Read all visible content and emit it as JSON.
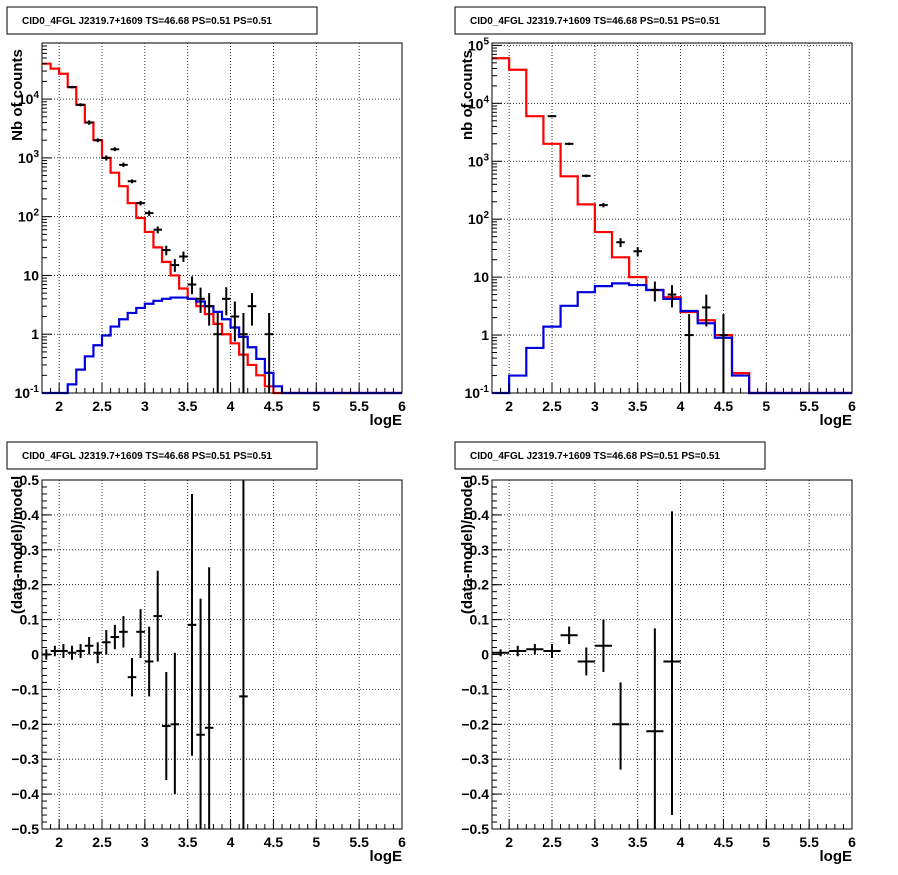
{
  "chart_data": [
    {
      "type": "line",
      "title": "CID0_4FGL J2319.7+1609 TS=46.68 PS=0.51 PS=0.51",
      "xlabel": "logE",
      "ylabel": "Nb of counts",
      "yscale": "log",
      "xlim": [
        1.8,
        6.0
      ],
      "ylim": [
        0.1,
        90000
      ],
      "xticks": [
        "2",
        "2.5",
        "3",
        "3.5",
        "4",
        "4.5",
        "5",
        "5.5",
        "6"
      ],
      "yticks": [
        "10⁻¹",
        "1",
        "10",
        "10²",
        "10³",
        "10⁴"
      ],
      "grid": true,
      "bin_edges": [
        1.8,
        1.9,
        2.0,
        2.1,
        2.2,
        2.3,
        2.4,
        2.5,
        2.6,
        2.7,
        2.8,
        2.9,
        3.0,
        3.1,
        3.2,
        3.3,
        3.4,
        3.5,
        3.6,
        3.7,
        3.8,
        3.9,
        4.0,
        4.1,
        4.2,
        4.3,
        4.4,
        4.5,
        4.6,
        4.7,
        4.8,
        4.9,
        5.0,
        5.1,
        5.2,
        5.3,
        5.4,
        5.5,
        5.6,
        5.7,
        5.8,
        5.9,
        6.0
      ],
      "series": [
        {
          "color": "#ff0000",
          "values": [
            40000,
            33000,
            27000,
            16000,
            8000,
            4000,
            2000,
            1000,
            560,
            330,
            170,
            95,
            55,
            30,
            17,
            10,
            6,
            4,
            3,
            2.2,
            1.5,
            1.0,
            0.7,
            0.45,
            0.3,
            0.2,
            0.13,
            0.1,
            0.1,
            0.1,
            0.1,
            0.1,
            0.1,
            0.1,
            0.1,
            0.1,
            0.1,
            0.1,
            0.1,
            0.1,
            0.1,
            0.1
          ]
        },
        {
          "color": "#0000dd",
          "values": [
            0.1,
            0.1,
            0.1,
            0.14,
            0.25,
            0.42,
            0.65,
            0.95,
            1.35,
            1.8,
            2.3,
            2.8,
            3.3,
            3.7,
            4.0,
            4.2,
            4.2,
            4.0,
            3.6,
            3.0,
            2.4,
            1.8,
            1.3,
            0.9,
            0.6,
            0.38,
            0.22,
            0.13,
            0.1,
            0.1,
            0.1,
            0.1,
            0.1,
            0.1,
            0.1,
            0.1,
            0.1,
            0.1,
            0.1,
            0.1,
            0.1,
            0.1
          ]
        }
      ],
      "points": [
        {
          "x": 2.15,
          "y": 16000,
          "lo": 15200,
          "hi": 16800
        },
        {
          "x": 2.25,
          "y": 8000,
          "lo": 7500,
          "hi": 8500
        },
        {
          "x": 2.35,
          "y": 4000,
          "lo": 3650,
          "hi": 4350
        },
        {
          "x": 2.45,
          "y": 2000,
          "lo": 1850,
          "hi": 2150
        },
        {
          "x": 2.55,
          "y": 1000,
          "lo": 900,
          "hi": 1100
        },
        {
          "x": 2.65,
          "y": 1400,
          "lo": 1300,
          "hi": 1520
        },
        {
          "x": 2.75,
          "y": 760,
          "lo": 700,
          "hi": 830
        },
        {
          "x": 2.85,
          "y": 400,
          "lo": 370,
          "hi": 430
        },
        {
          "x": 2.95,
          "y": 170,
          "lo": 155,
          "hi": 185
        },
        {
          "x": 3.05,
          "y": 115,
          "lo": 103,
          "hi": 127
        },
        {
          "x": 3.15,
          "y": 60,
          "lo": 52,
          "hi": 68
        },
        {
          "x": 3.25,
          "y": 27,
          "lo": 22,
          "hi": 32
        },
        {
          "x": 3.35,
          "y": 15,
          "lo": 11.5,
          "hi": 19
        },
        {
          "x": 3.45,
          "y": 21,
          "lo": 17,
          "hi": 25.5
        },
        {
          "x": 3.55,
          "y": 7,
          "lo": 4.8,
          "hi": 9.6
        },
        {
          "x": 3.65,
          "y": 4,
          "lo": 2.3,
          "hi": 6.2
        },
        {
          "x": 3.75,
          "y": 3,
          "lo": 1.4,
          "hi": 5
        },
        {
          "x": 3.85,
          "y": 1,
          "lo": 0.1,
          "hi": 2.3
        },
        {
          "x": 3.95,
          "y": 4,
          "lo": 2.1,
          "hi": 6.3
        },
        {
          "x": 4.05,
          "y": 2,
          "lo": 0.75,
          "hi": 3.6
        },
        {
          "x": 4.15,
          "y": 1,
          "lo": 0.1,
          "hi": 2.3
        },
        {
          "x": 4.25,
          "y": 3,
          "lo": 1.4,
          "hi": 5
        },
        {
          "x": 4.45,
          "y": 1,
          "lo": 0.1,
          "hi": 2.3
        }
      ]
    },
    {
      "type": "line",
      "title": "CID0_4FGL J2319.7+1609 TS=46.68 PS=0.51 PS=0.51",
      "xlabel": "logE",
      "ylabel": "nb of counts",
      "yscale": "log",
      "xlim": [
        1.8,
        6.0
      ],
      "ylim": [
        0.1,
        110000
      ],
      "xticks": [
        "2",
        "2.5",
        "3",
        "3.5",
        "4",
        "4.5",
        "5",
        "5.5",
        "6"
      ],
      "yticks": [
        "10⁻¹",
        "1",
        "10",
        "10²",
        "10³",
        "10⁴",
        "10⁵"
      ],
      "grid": true,
      "bin_edges": [
        1.8,
        2.0,
        2.2,
        2.4,
        2.6,
        2.8,
        3.0,
        3.2,
        3.4,
        3.6,
        3.8,
        4.0,
        4.2,
        4.4,
        4.6,
        4.8,
        5.0,
        5.2,
        5.4,
        5.6,
        5.8,
        6.0
      ],
      "series": [
        {
          "color": "#ff0000",
          "values": [
            60000,
            38000,
            6000,
            2000,
            550,
            180,
            60,
            22,
            10,
            6,
            4.5,
            2.5,
            1.8,
            1.0,
            0.22,
            0.1,
            0.1,
            0.1,
            0.1,
            0.1,
            0.1
          ]
        },
        {
          "color": "#0000dd",
          "values": [
            0.1,
            0.2,
            0.6,
            1.4,
            3.2,
            5.5,
            7.0,
            7.8,
            7.3,
            6.0,
            4.2,
            2.6,
            1.6,
            0.9,
            0.2,
            0.1,
            0.1,
            0.1,
            0.1,
            0.1,
            0.1
          ]
        }
      ],
      "points": [
        {
          "x": 2.5,
          "y": 6000,
          "lo": 5800,
          "hi": 6200
        },
        {
          "x": 2.7,
          "y": 2000,
          "lo": 1900,
          "hi": 2100
        },
        {
          "x": 2.9,
          "y": 560,
          "lo": 530,
          "hi": 590
        },
        {
          "x": 3.1,
          "y": 175,
          "lo": 160,
          "hi": 190
        },
        {
          "x": 3.3,
          "y": 40,
          "lo": 33,
          "hi": 47
        },
        {
          "x": 3.5,
          "y": 28,
          "lo": 23,
          "hi": 33
        },
        {
          "x": 3.7,
          "y": 6,
          "lo": 3.8,
          "hi": 8.4
        },
        {
          "x": 3.9,
          "y": 5,
          "lo": 3,
          "hi": 7.3
        },
        {
          "x": 4.1,
          "y": 1,
          "lo": 0.1,
          "hi": 2.3
        },
        {
          "x": 4.3,
          "y": 3,
          "lo": 1.4,
          "hi": 5
        },
        {
          "x": 4.5,
          "y": 1,
          "lo": 0.1,
          "hi": 2.3
        }
      ]
    },
    {
      "type": "scatter",
      "title": "CID0_4FGL J2319.7+1609 TS=46.68 PS=0.51 PS=0.51",
      "xlabel": "logE",
      "ylabel": "(data-model)/model",
      "xlim": [
        1.8,
        6.0
      ],
      "ylim": [
        -0.5,
        0.5
      ],
      "xticks": [
        "2",
        "2.5",
        "3",
        "3.5",
        "4",
        "4.5",
        "5",
        "5.5",
        "6"
      ],
      "yticks": [
        "−0.5",
        "−0.4",
        "−0.3",
        "−0.2",
        "−0.1",
        "0",
        "0.1",
        "0.2",
        "0.3",
        "0.4",
        "0.5"
      ],
      "grid": true,
      "xerr": 0.05,
      "points": [
        {
          "x": 1.85,
          "y": 0.0,
          "lo": -0.015,
          "hi": 0.015
        },
        {
          "x": 1.95,
          "y": 0.01,
          "lo": -0.005,
          "hi": 0.025
        },
        {
          "x": 2.05,
          "y": 0.01,
          "lo": -0.01,
          "hi": 0.03
        },
        {
          "x": 2.15,
          "y": 0.005,
          "lo": -0.015,
          "hi": 0.025
        },
        {
          "x": 2.25,
          "y": 0.01,
          "lo": -0.01,
          "hi": 0.03
        },
        {
          "x": 2.35,
          "y": 0.025,
          "lo": 0.0,
          "hi": 0.05
        },
        {
          "x": 2.45,
          "y": 0.005,
          "lo": -0.025,
          "hi": 0.035
        },
        {
          "x": 2.55,
          "y": 0.035,
          "lo": 0.0,
          "hi": 0.07
        },
        {
          "x": 2.65,
          "y": 0.05,
          "lo": 0.015,
          "hi": 0.085
        },
        {
          "x": 2.75,
          "y": 0.065,
          "lo": 0.02,
          "hi": 0.11
        },
        {
          "x": 2.85,
          "y": -0.065,
          "lo": -0.12,
          "hi": -0.01
        },
        {
          "x": 2.95,
          "y": 0.065,
          "lo": -0.01,
          "hi": 0.13
        },
        {
          "x": 3.05,
          "y": -0.02,
          "lo": -0.12,
          "hi": 0.08
        },
        {
          "x": 3.15,
          "y": 0.11,
          "lo": -0.02,
          "hi": 0.24
        },
        {
          "x": 3.25,
          "y": -0.205,
          "lo": -0.36,
          "hi": -0.05
        },
        {
          "x": 3.35,
          "y": -0.2,
          "lo": -0.4,
          "hi": 0.005
        },
        {
          "x": 3.55,
          "y": 0.085,
          "lo": -0.29,
          "hi": 0.46
        },
        {
          "x": 3.65,
          "y": -0.23,
          "lo": -0.5,
          "hi": 0.16
        },
        {
          "x": 3.75,
          "y": -0.21,
          "lo": -0.5,
          "hi": 0.25
        },
        {
          "x": 4.15,
          "y": -0.12,
          "lo": -0.5,
          "hi": 0.5
        }
      ]
    },
    {
      "type": "scatter",
      "title": "CID0_4FGL J2319.7+1609 TS=46.68 PS=0.51 PS=0.51",
      "xlabel": "logE",
      "ylabel": "(data-model)/model",
      "xlim": [
        1.8,
        6.0
      ],
      "ylim": [
        -0.5,
        0.5
      ],
      "xticks": [
        "2",
        "2.5",
        "3",
        "3.5",
        "4",
        "4.5",
        "5",
        "5.5",
        "6"
      ],
      "yticks": [
        "−0.5",
        "−0.4",
        "−0.3",
        "−0.2",
        "−0.1",
        "0",
        "0.1",
        "0.2",
        "0.3",
        "0.4",
        "0.5"
      ],
      "grid": true,
      "xerr": 0.1,
      "points": [
        {
          "x": 1.9,
          "y": 0.005,
          "lo": -0.005,
          "hi": 0.015
        },
        {
          "x": 2.1,
          "y": 0.01,
          "lo": -0.005,
          "hi": 0.025
        },
        {
          "x": 2.3,
          "y": 0.015,
          "lo": 0.0,
          "hi": 0.03
        },
        {
          "x": 2.5,
          "y": 0.01,
          "lo": -0.01,
          "hi": 0.03
        },
        {
          "x": 2.7,
          "y": 0.055,
          "lo": 0.03,
          "hi": 0.08
        },
        {
          "x": 2.9,
          "y": -0.02,
          "lo": -0.06,
          "hi": 0.02
        },
        {
          "x": 3.1,
          "y": 0.025,
          "lo": -0.05,
          "hi": 0.1
        },
        {
          "x": 3.3,
          "y": -0.2,
          "lo": -0.33,
          "hi": -0.08
        },
        {
          "x": 3.7,
          "y": -0.22,
          "lo": -0.5,
          "hi": 0.075
        },
        {
          "x": 3.9,
          "y": -0.02,
          "lo": -0.46,
          "hi": 0.41
        }
      ]
    }
  ]
}
